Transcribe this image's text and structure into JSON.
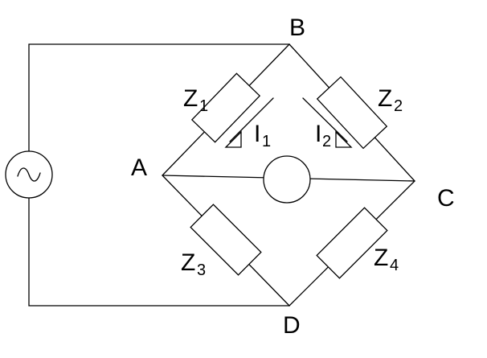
{
  "nodes": {
    "a": "A",
    "b": "B",
    "c": "C",
    "d": "D"
  },
  "impedances": [
    {
      "letter": "Z",
      "index": "1"
    },
    {
      "letter": "Z",
      "index": "2"
    },
    {
      "letter": "Z",
      "index": "3"
    },
    {
      "letter": "Z",
      "index": "4"
    }
  ],
  "currents": [
    {
      "letter": "I",
      "index": "1"
    },
    {
      "letter": "I",
      "index": "2"
    }
  ],
  "icons": {
    "source": "ac-source-icon",
    "meter": "detector-circle-icon"
  }
}
